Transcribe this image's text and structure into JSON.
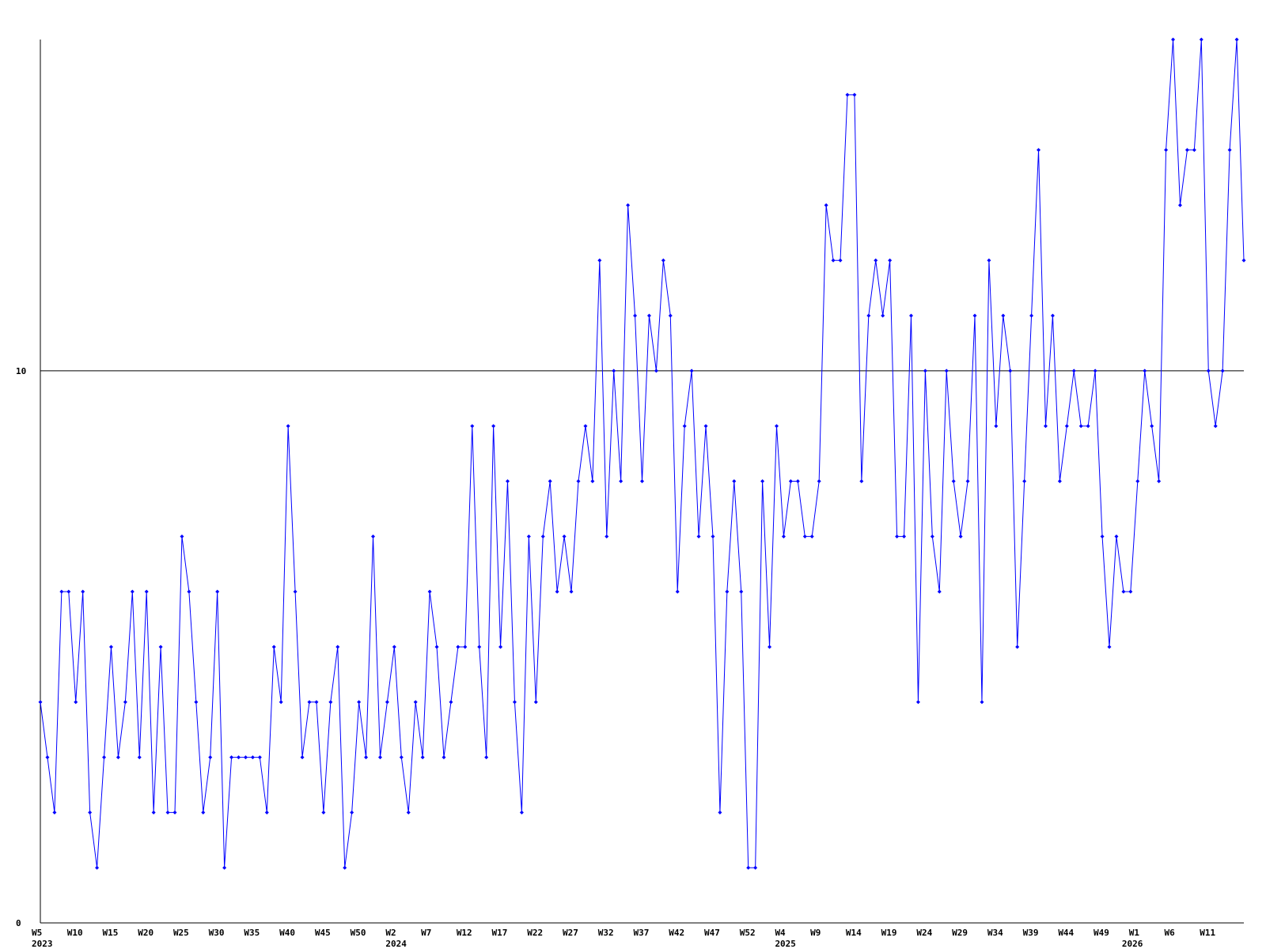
{
  "chart_data": {
    "type": "line",
    "categories": [
      "W5",
      null,
      null,
      null,
      null,
      "W10",
      null,
      null,
      null,
      null,
      "W15",
      null,
      null,
      null,
      null,
      "W20",
      null,
      null,
      null,
      null,
      "W25",
      null,
      null,
      null,
      null,
      "W30",
      null,
      null,
      null,
      null,
      "W35",
      null,
      null,
      null,
      null,
      "W40",
      null,
      null,
      null,
      null,
      "W45",
      null,
      null,
      null,
      null,
      "W50",
      null,
      null,
      null,
      null,
      "W2",
      null,
      null,
      null,
      null,
      "W7",
      null,
      null,
      null,
      null,
      "W12",
      null,
      null,
      null,
      null,
      "W17",
      null,
      null,
      null,
      null,
      "W22",
      null,
      null,
      null,
      null,
      "W27",
      null,
      null,
      null,
      null,
      "W32",
      null,
      null,
      null,
      null,
      "W37",
      null,
      null,
      null,
      null,
      "W42",
      null,
      null,
      null,
      null,
      "W47",
      null,
      null,
      null,
      null,
      "W52",
      null,
      null,
      null,
      null,
      "W4",
      null,
      null,
      null,
      null,
      "W9",
      null,
      null,
      null,
      null,
      "W14",
      null,
      null,
      null,
      null,
      "W19",
      null,
      null,
      null,
      null,
      "W24",
      null,
      null,
      null,
      null,
      "W29",
      null,
      null,
      null,
      null,
      "W34",
      null,
      null,
      null,
      null,
      "W39",
      null,
      null,
      null,
      null,
      "W44",
      null,
      null,
      null,
      null,
      "W49",
      null,
      null,
      null,
      null,
      "W1",
      null,
      null,
      null,
      null,
      "W6",
      null,
      null,
      null,
      null,
      "W11",
      null,
      null,
      null,
      null,
      null
    ],
    "year_labels": [
      "2023",
      null,
      null,
      null,
      null,
      null,
      null,
      null,
      null,
      null,
      null,
      null,
      null,
      null,
      null,
      null,
      null,
      null,
      null,
      null,
      null,
      null,
      null,
      null,
      null,
      null,
      null,
      null,
      null,
      null,
      null,
      null,
      null,
      null,
      null,
      null,
      null,
      null,
      null,
      null,
      null,
      null,
      null,
      null,
      null,
      null,
      null,
      null,
      null,
      null,
      "2024",
      null,
      null,
      null,
      null,
      null,
      null,
      null,
      null,
      null,
      null,
      null,
      null,
      null,
      null,
      null,
      null,
      null,
      null,
      null,
      null,
      null,
      null,
      null,
      null,
      null,
      null,
      null,
      null,
      null,
      null,
      null,
      null,
      null,
      null,
      null,
      null,
      null,
      null,
      null,
      null,
      null,
      null,
      null,
      null,
      null,
      null,
      null,
      null,
      null,
      null,
      null,
      null,
      null,
      null,
      "2025",
      null,
      null,
      null,
      null,
      null,
      null,
      null,
      null,
      null,
      null,
      null,
      null,
      null,
      null,
      null,
      null,
      null,
      null,
      null,
      null,
      null,
      null,
      null,
      null,
      null,
      null,
      null,
      null,
      null,
      null,
      null,
      null,
      null,
      null,
      null,
      null,
      null,
      null,
      null,
      null,
      null,
      null,
      null,
      null,
      null,
      null,
      null,
      null,
      "2026",
      null,
      null,
      null,
      null,
      null,
      null,
      null,
      null,
      null,
      null,
      null,
      null,
      null,
      null,
      null
    ],
    "series": [
      {
        "color": "#0000ff",
        "values": [
          4,
          3,
          2,
          6,
          6,
          4,
          6,
          2,
          1,
          3,
          5,
          3,
          4,
          6,
          3,
          6,
          2,
          5,
          2,
          2,
          7,
          6,
          4,
          2,
          3,
          6,
          1,
          3,
          3,
          3,
          3,
          3,
          2,
          5,
          4,
          9,
          6,
          3,
          4,
          4,
          2,
          4,
          5,
          1,
          2,
          4,
          3,
          7,
          3,
          4,
          5,
          3,
          2,
          4,
          3,
          6,
          5,
          3,
          4,
          5,
          5,
          9,
          5,
          3,
          9,
          5,
          8,
          4,
          2,
          7,
          4,
          7,
          8,
          6,
          7,
          6,
          8,
          9,
          8,
          12,
          7,
          10,
          8,
          13,
          11,
          8,
          11,
          10,
          12,
          11,
          6,
          9,
          10,
          7,
          9,
          7,
          2,
          6,
          8,
          6,
          1,
          1,
          8,
          5,
          9,
          7,
          8,
          8,
          7,
          7,
          8,
          13,
          12,
          12,
          15,
          15,
          8,
          11,
          12,
          11,
          12,
          7,
          7,
          11,
          4,
          10,
          7,
          6,
          10,
          8,
          7,
          8,
          11,
          4,
          12,
          9,
          11,
          10,
          5,
          8,
          11,
          14,
          9,
          11,
          8,
          9,
          10,
          9,
          9,
          10,
          7,
          5,
          7,
          6,
          6,
          8,
          10,
          9,
          8,
          14,
          16,
          13,
          14,
          14,
          16,
          10,
          9,
          10,
          14,
          16,
          12
        ]
      }
    ],
    "ylim": [
      0,
      16
    ],
    "yticks": [
      0,
      10
    ],
    "grid": true
  }
}
